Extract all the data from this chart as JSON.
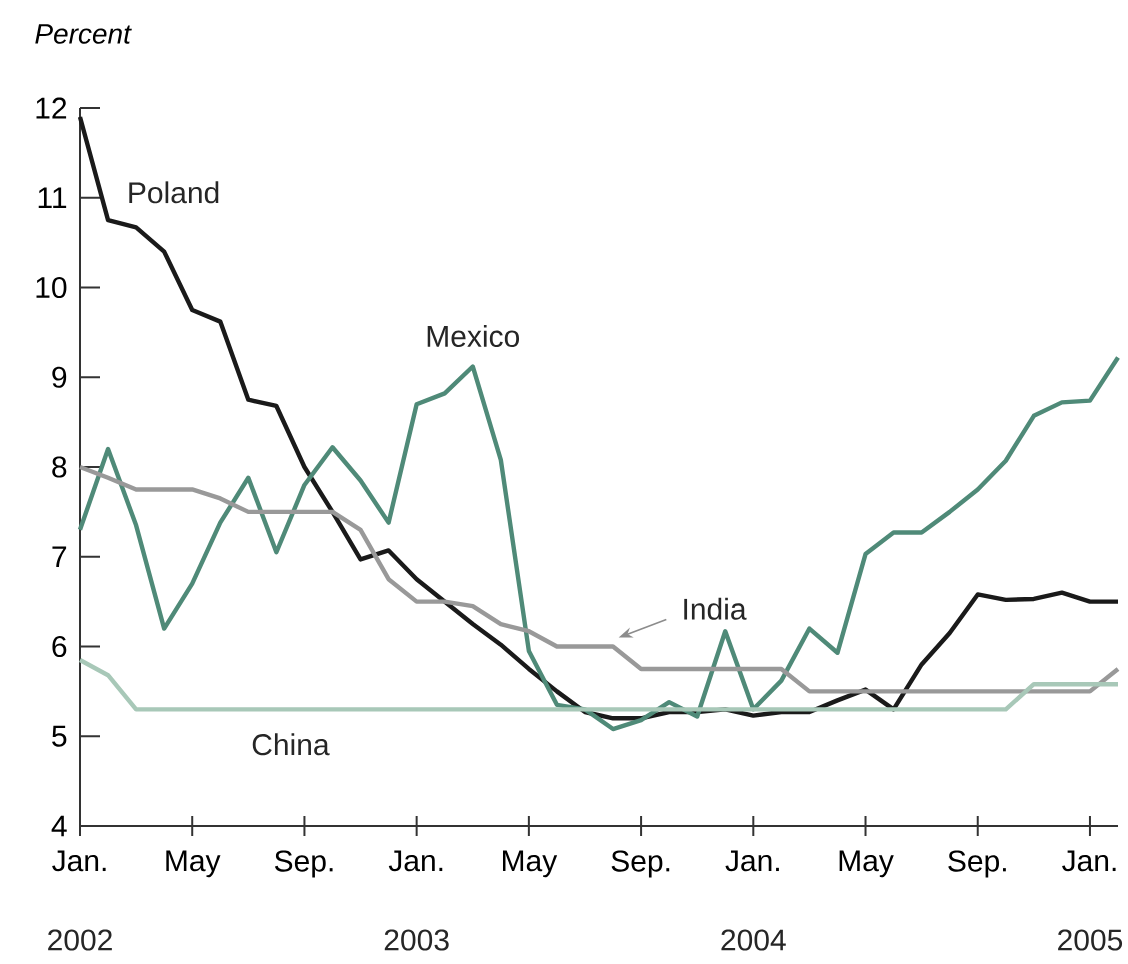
{
  "chart_data": {
    "type": "line",
    "ylabel": "Percent",
    "x": [
      "2002-01",
      "2002-02",
      "2002-03",
      "2002-04",
      "2002-05",
      "2002-06",
      "2002-07",
      "2002-08",
      "2002-09",
      "2002-10",
      "2002-11",
      "2002-12",
      "2003-01",
      "2003-02",
      "2003-03",
      "2003-04",
      "2003-05",
      "2003-06",
      "2003-07",
      "2003-08",
      "2003-09",
      "2003-10",
      "2003-11",
      "2003-12",
      "2004-01",
      "2004-02",
      "2004-03",
      "2004-04",
      "2004-05",
      "2004-06",
      "2004-07",
      "2004-08",
      "2004-09",
      "2004-10",
      "2004-11",
      "2004-12",
      "2005-01",
      "2005-02"
    ],
    "series": [
      {
        "name": "Poland",
        "color": "#1a1a1a",
        "values": [
          11.9,
          10.75,
          10.67,
          10.4,
          9.75,
          9.62,
          8.75,
          8.68,
          8.0,
          7.5,
          6.97,
          7.07,
          6.75,
          6.5,
          6.25,
          6.02,
          5.75,
          5.5,
          5.27,
          5.2,
          5.2,
          5.27,
          5.27,
          5.3,
          5.23,
          5.27,
          5.27,
          5.4,
          5.52,
          5.3,
          5.8,
          6.15,
          6.58,
          6.52,
          6.53,
          6.6,
          6.5,
          6.5
        ]
      },
      {
        "name": "Mexico",
        "color": "#4f8a78",
        "values": [
          7.3,
          8.2,
          7.35,
          6.2,
          6.7,
          7.38,
          7.88,
          7.05,
          7.8,
          8.22,
          7.85,
          7.38,
          8.7,
          8.82,
          9.12,
          8.08,
          5.95,
          5.35,
          5.3,
          5.08,
          5.18,
          5.38,
          5.22,
          6.17,
          5.3,
          5.62,
          6.2,
          5.93,
          7.03,
          7.27,
          7.27,
          7.5,
          7.75,
          8.07,
          8.57,
          8.72,
          8.74,
          9.22
        ]
      },
      {
        "name": "India",
        "color": "#999999",
        "values": [
          8.0,
          7.88,
          7.75,
          7.75,
          7.75,
          7.65,
          7.5,
          7.5,
          7.5,
          7.5,
          7.3,
          6.75,
          6.5,
          6.5,
          6.45,
          6.25,
          6.17,
          6.0,
          6.0,
          6.0,
          5.75,
          5.75,
          5.75,
          5.75,
          5.75,
          5.75,
          5.5,
          5.5,
          5.5,
          5.5,
          5.5,
          5.5,
          5.5,
          5.5,
          5.5,
          5.5,
          5.5,
          5.75
        ]
      },
      {
        "name": "China",
        "color": "#a8c8b8",
        "values": [
          5.85,
          5.68,
          5.3,
          5.3,
          5.3,
          5.3,
          5.3,
          5.3,
          5.3,
          5.3,
          5.3,
          5.3,
          5.3,
          5.3,
          5.3,
          5.3,
          5.3,
          5.3,
          5.3,
          5.3,
          5.3,
          5.3,
          5.3,
          5.3,
          5.3,
          5.3,
          5.3,
          5.3,
          5.3,
          5.3,
          5.3,
          5.3,
          5.3,
          5.3,
          5.58,
          5.58,
          5.58,
          5.58
        ]
      }
    ],
    "xlim": [
      "2002-01",
      "2005-02"
    ],
    "ylim": [
      4,
      12
    ],
    "xticks": [
      {
        "value": "2002-01",
        "label": "Jan."
      },
      {
        "value": "2002-05",
        "label": "May"
      },
      {
        "value": "2002-09",
        "label": "Sep."
      },
      {
        "value": "2003-01",
        "label": "Jan."
      },
      {
        "value": "2003-05",
        "label": "May"
      },
      {
        "value": "2003-09",
        "label": "Sep."
      },
      {
        "value": "2004-01",
        "label": "Jan."
      },
      {
        "value": "2004-05",
        "label": "May"
      },
      {
        "value": "2004-09",
        "label": "Sep."
      },
      {
        "value": "2005-01",
        "label": "Jan."
      }
    ],
    "yticks": [
      4,
      5,
      6,
      7,
      8,
      9,
      10,
      11,
      12
    ],
    "annotations": [
      "2002",
      "2003",
      "2004",
      "2005"
    ]
  }
}
